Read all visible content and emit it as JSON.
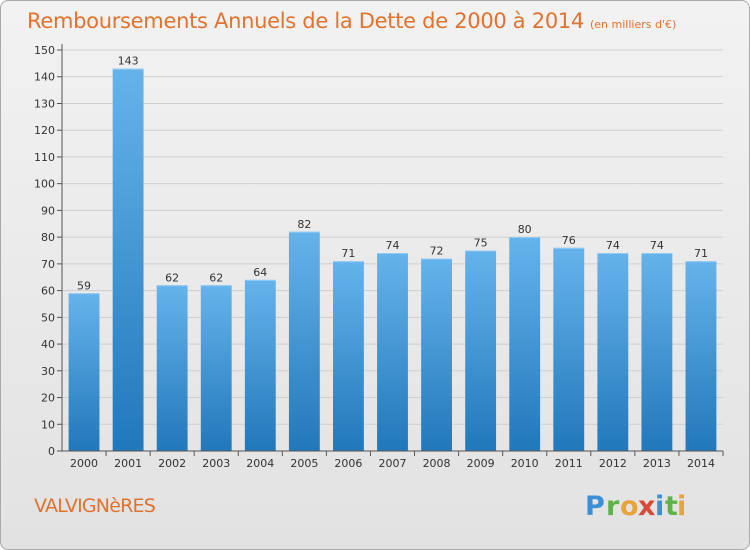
{
  "title": "Remboursements Annuels de la Dette de 2000 à 2014",
  "subtitle": "(en milliers d'€)",
  "commune": "VALVIGNèRES",
  "logo": {
    "letters": [
      "P",
      "r",
      "o",
      "x",
      "i",
      "t",
      "i"
    ]
  },
  "colors": {
    "title": "#e0732f",
    "bar_light": "#66b3eb",
    "bar_dark": "#2178ba",
    "grid": "#cfcfcf",
    "axis": "#555555"
  },
  "chart_data": {
    "type": "bar",
    "categories": [
      "2000",
      "2001",
      "2002",
      "2003",
      "2004",
      "2005",
      "2006",
      "2007",
      "2008",
      "2009",
      "2010",
      "2011",
      "2012",
      "2013",
      "2014"
    ],
    "values": [
      59,
      143,
      62,
      62,
      64,
      82,
      71,
      74,
      72,
      75,
      80,
      76,
      74,
      74,
      71
    ],
    "ylim": [
      0,
      150
    ],
    "yticks": [
      0,
      10,
      20,
      30,
      40,
      50,
      60,
      70,
      80,
      90,
      100,
      110,
      120,
      130,
      140,
      150
    ],
    "grid": true,
    "data_labels": true
  }
}
